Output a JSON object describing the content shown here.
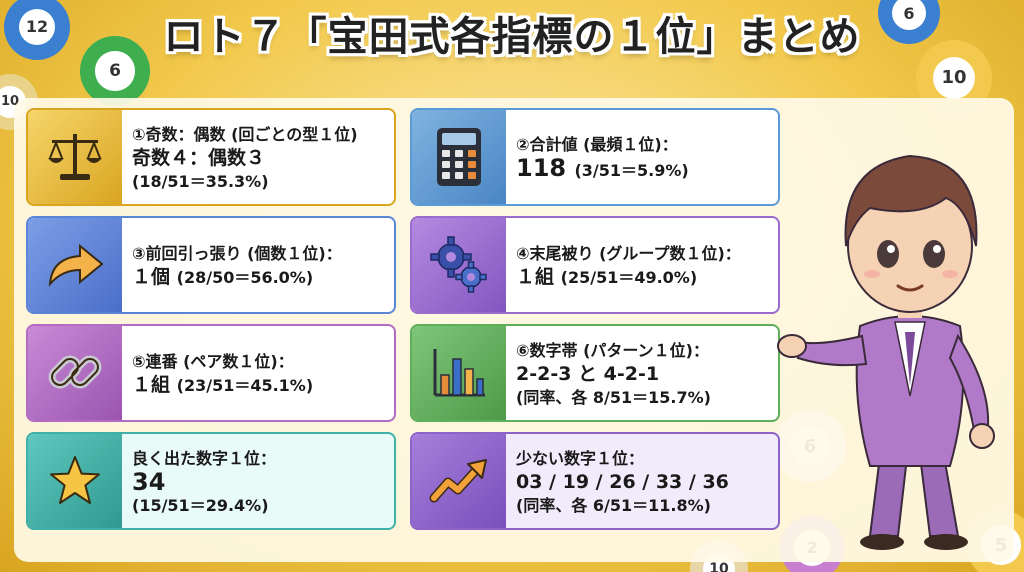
{
  "title": "ロト７「宝田式各指標の１位」まとめ",
  "balls": [
    "12",
    "6",
    "10",
    "6",
    "10",
    "6",
    "2",
    "5",
    "10"
  ],
  "cards": [
    {
      "label": "①奇数：偶数 (回ごとの型１位)",
      "main": "奇数４：偶数３",
      "sub": "(18/51＝35.3%)",
      "icon": "scales-icon",
      "color": "#d9a521"
    },
    {
      "label": "②合計値 (最頻１位)：",
      "main": "118",
      "main_suffix": "(3/51＝5.9%)",
      "icon": "calculator-icon",
      "color": "#4a86c5"
    },
    {
      "label": "③前回引っ張り (個数１位)：",
      "main": "１個",
      "main_suffix": "(28/50＝56.0%)",
      "icon": "arrow-icon",
      "color": "#4a6fc9"
    },
    {
      "label": "④末尾被り (グループ数１位)：",
      "main": "１組",
      "main_suffix": "(25/51＝49.0%)",
      "icon": "gears-icon",
      "color": "#8356c0"
    },
    {
      "label": "⑤連番 (ペア数１位)：",
      "main": "１組",
      "main_suffix": "(23/51＝45.1%)",
      "icon": "chain-icon",
      "color": "#9b55b0"
    },
    {
      "label": "⑥数字帯 (パターン１位)：",
      "main": "2-2-3 と 4-2-1",
      "sub": "(同率、各 8/51＝15.7%)",
      "icon": "bar-chart-icon",
      "color": "#4e9a49"
    },
    {
      "label": "良く出た数字１位：",
      "main": "34",
      "sub": "(15/51＝29.4%)",
      "icon": "star-icon",
      "color": "#2f9a91"
    },
    {
      "label": "少ない数字１位：",
      "main": "03 / 19 / 26 / 33 / 36",
      "sub": "(同率、各 6/51＝11.8%)",
      "icon": "trend-up-icon",
      "color": "#7a4fbb"
    }
  ]
}
